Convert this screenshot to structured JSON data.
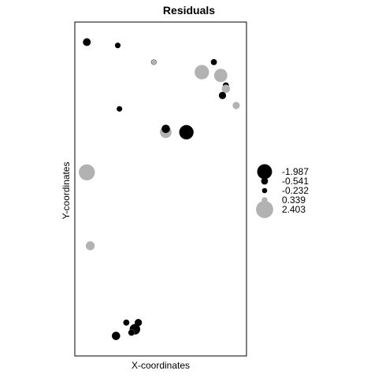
{
  "chart_data": {
    "type": "scatter",
    "title": "Residuals",
    "xlabel": "X-coordinates",
    "ylabel": "Y-coordinates",
    "xlim": [
      0,
      100
    ],
    "ylim": [
      0,
      100
    ],
    "axes_ticks_shown": false,
    "grid": false,
    "colors": {
      "negative": "#000000",
      "positive": "#b2b2b2",
      "frame": "#000000"
    },
    "legend": {
      "placement": "right",
      "entries": [
        {
          "label": "-1.987",
          "value": -1.987,
          "color": "#000000"
        },
        {
          "label": "-0.541",
          "value": -0.541,
          "color": "#000000"
        },
        {
          "label": "-0.232",
          "value": -0.232,
          "color": "#000000"
        },
        {
          "label": "0.339",
          "value": 0.339,
          "color": "#b2b2b2"
        },
        {
          "label": "2.403",
          "value": 2.403,
          "color": "#b2b2b2"
        }
      ]
    },
    "points": [
      {
        "x": 7,
        "y": 94,
        "residual": -0.7
      },
      {
        "x": 25,
        "y": 93,
        "residual": 0.2
      },
      {
        "x": 25,
        "y": 93,
        "residual": -0.3
      },
      {
        "x": 46,
        "y": 88,
        "residual": -0.3
      },
      {
        "x": 46,
        "y": 88,
        "residual": 0.2
      },
      {
        "x": 81,
        "y": 88,
        "residual": -0.4
      },
      {
        "x": 74,
        "y": 85,
        "residual": 1.9
      },
      {
        "x": 85,
        "y": 84,
        "residual": 1.7
      },
      {
        "x": 88,
        "y": 81,
        "residual": -0.4
      },
      {
        "x": 88,
        "y": 80,
        "residual": 0.8
      },
      {
        "x": 86,
        "y": 78,
        "residual": -0.6
      },
      {
        "x": 94,
        "y": 75,
        "residual": 0.6
      },
      {
        "x": 26,
        "y": 74,
        "residual": -0.3
      },
      {
        "x": 53,
        "y": 67,
        "residual": 1.4
      },
      {
        "x": 53,
        "y": 68,
        "residual": -0.8
      },
      {
        "x": 65,
        "y": 67,
        "residual": -1.9
      },
      {
        "x": 7,
        "y": 55,
        "residual": 2.2
      },
      {
        "x": 9,
        "y": 33,
        "residual": 0.9
      },
      {
        "x": 30,
        "y": 10,
        "residual": -0.4
      },
      {
        "x": 37,
        "y": 10,
        "residual": -0.6
      },
      {
        "x": 35,
        "y": 8,
        "residual": -1.2
      },
      {
        "x": 33,
        "y": 7,
        "residual": 0.5
      },
      {
        "x": 33,
        "y": 7,
        "residual": -0.4
      },
      {
        "x": 24,
        "y": 6,
        "residual": -0.8
      }
    ]
  }
}
